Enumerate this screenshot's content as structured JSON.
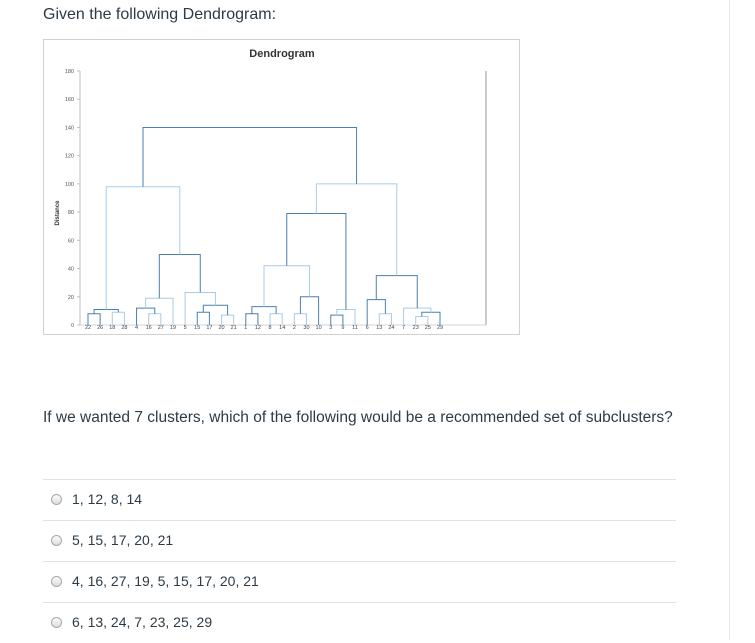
{
  "question": {
    "heading": "Given the following Dendrogram:",
    "prompt": "If we wanted 7 clusters, which of the following would be a recommended set of subclusters?"
  },
  "answers": [
    {
      "label": "1, 12, 8, 14"
    },
    {
      "label": "5, 15, 17, 20, 21"
    },
    {
      "label": "4, 16, 27, 19, 5, 15, 17, 20, 21"
    },
    {
      "label": "6, 13, 24, 7, 23, 25, 29"
    }
  ],
  "colors": {
    "text": "#2d3b45",
    "link_dark": "#4a7fb0",
    "link_light": "#a9cbe8",
    "grid": "#e6e6e6"
  },
  "chart_data": {
    "type": "dendrogram",
    "title": "Dendrogram",
    "ylabel": "Distance",
    "xlabel": "",
    "ylim": [
      0,
      180
    ],
    "yticks": [
      0,
      20,
      40,
      60,
      80,
      100,
      120,
      140,
      160,
      180
    ],
    "leaves": [
      "22",
      "26",
      "18",
      "28",
      "4",
      "16",
      "27",
      "19",
      "5",
      "15",
      "17",
      "20",
      "21",
      "1",
      "12",
      "8",
      "14",
      "2",
      "30",
      "10",
      "3",
      "9",
      "11",
      "6",
      "13",
      "24",
      "7",
      "23",
      "25",
      "29"
    ],
    "merges": [
      {
        "a": "22",
        "b": "26",
        "height": 8
      },
      {
        "a": "18",
        "b": "28",
        "height": 9
      },
      {
        "a": "L0",
        "b": "L1",
        "height": 11
      },
      {
        "a": "16",
        "b": "27",
        "height": 8
      },
      {
        "a": "4",
        "b": "L3",
        "height": 12
      },
      {
        "a": "L4",
        "b": "19",
        "height": 19
      },
      {
        "a": "15",
        "b": "17",
        "height": 9
      },
      {
        "a": "20",
        "b": "21",
        "height": 7
      },
      {
        "a": "L6",
        "b": "L7",
        "height": 14
      },
      {
        "a": "5",
        "b": "L8",
        "height": 23
      },
      {
        "a": "L5",
        "b": "L9",
        "height": 50
      },
      {
        "a": "L2",
        "b": "L10",
        "height": 98
      },
      {
        "a": "1",
        "b": "12",
        "height": 8
      },
      {
        "a": "8",
        "b": "14",
        "height": 8
      },
      {
        "a": "L12",
        "b": "L13",
        "height": 13
      },
      {
        "a": "2",
        "b": "30",
        "height": 8
      },
      {
        "a": "L15",
        "b": "10",
        "height": 20
      },
      {
        "a": "L14",
        "b": "L16",
        "height": 42
      },
      {
        "a": "3",
        "b": "9",
        "height": 7
      },
      {
        "a": "L18",
        "b": "11",
        "height": 11
      },
      {
        "a": "L17",
        "b": "L19",
        "height": 79
      },
      {
        "a": "13",
        "b": "24",
        "height": 8
      },
      {
        "a": "6",
        "b": "L21",
        "height": 18
      },
      {
        "a": "23",
        "b": "25",
        "height": 6
      },
      {
        "a": "L23",
        "b": "29",
        "height": 9
      },
      {
        "a": "7",
        "b": "L24",
        "height": 12
      },
      {
        "a": "L22",
        "b": "L25",
        "height": 35
      },
      {
        "a": "L20",
        "b": "L26",
        "height": 100
      },
      {
        "a": "L11",
        "b": "L27",
        "height": 140
      }
    ],
    "grid": false,
    "legend": "none"
  }
}
